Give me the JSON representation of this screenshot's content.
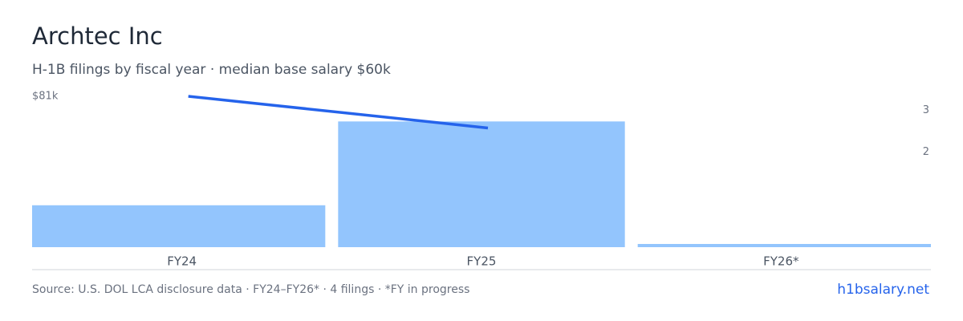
{
  "chart_data": {
    "type": "bar",
    "title": "Archtec Inc",
    "subtitle": "H-1B filings by fiscal year · median base salary $60k",
    "categories": [
      "FY24",
      "FY25",
      "FY26*"
    ],
    "series": [
      {
        "type": "bar",
        "axis": "y2",
        "color": "#93c5fd",
        "values": [
          1,
          3,
          0
        ]
      },
      {
        "type": "line",
        "color": "#2563eb",
        "values": [
          81000,
          64000,
          null
        ]
      }
    ],
    "ylim": [
      0,
      81000
    ],
    "yticks": [
      {
        "value": 81000,
        "label": "$81k"
      }
    ],
    "y2lim": [
      0,
      3.6
    ],
    "y2ticks": [
      2,
      3
    ],
    "source": "Source: U.S. DOL LCA disclosure data · FY24–FY26* · 4 filings · *FY in progress",
    "brand": "h1bsalary.net"
  }
}
